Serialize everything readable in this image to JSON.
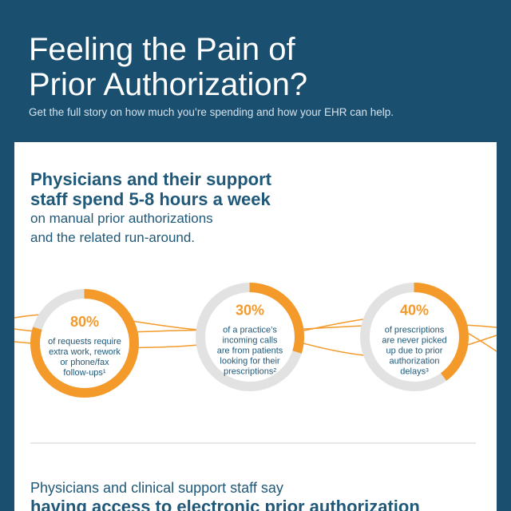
{
  "header": {
    "title_lines": [
      "Feeling the Pain of",
      "Prior Authorization?"
    ],
    "subtitle": "Get the full story on how much you’re spending and how your EHR can help."
  },
  "section": {
    "heading_lines": [
      "Physicians and their support",
      "staff spend 5-8 hours a week"
    ],
    "body_lines": [
      "on manual prior authorizations",
      "and the related run-around."
    ]
  },
  "stats": [
    {
      "value": 80,
      "label": "80%",
      "text": [
        "of requests require",
        "extra work, rework",
        "or phone/fax",
        "follow-ups¹"
      ]
    },
    {
      "value": 30,
      "label": "30%",
      "text": [
        "of a practice’s",
        "incoming calls",
        "are from patients",
        "looking for their",
        "prescriptions²"
      ]
    },
    {
      "value": 40,
      "label": "40%",
      "text": [
        "of prescriptions",
        "are never picked",
        "up due to prior",
        "authorization",
        "delays³"
      ]
    }
  ],
  "footer": {
    "line": "Physicians and clinical support staff say",
    "bold_line": "having access to electronic prior authorization"
  }
}
